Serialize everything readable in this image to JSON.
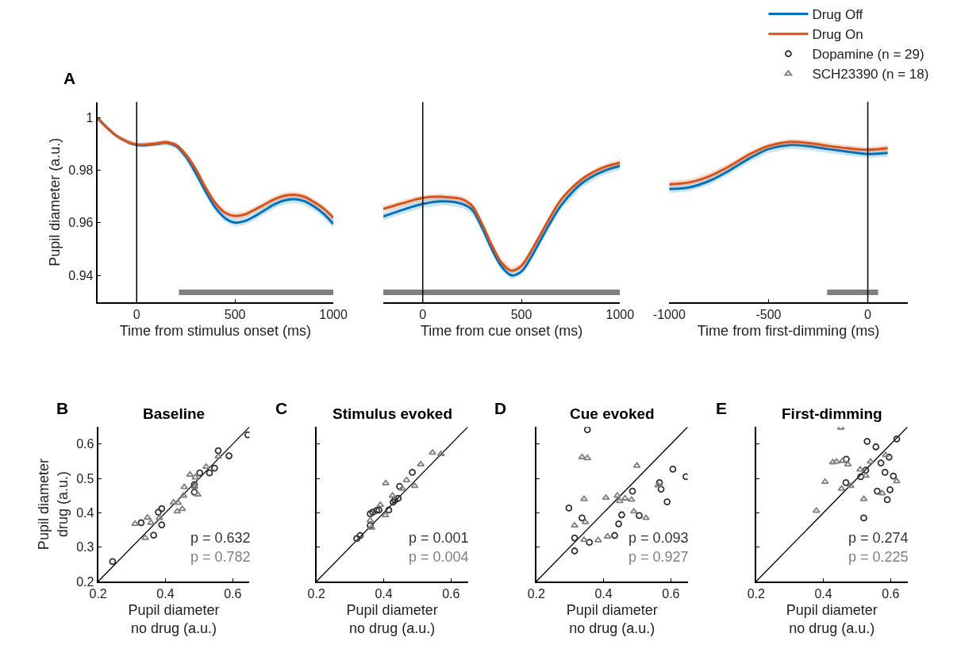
{
  "chart_data": [
    {
      "type": "line",
      "xlabel": "Time from stimulus onset (ms)",
      "ylabel": "Pupil diameter (a.u.)",
      "xlim": [
        -200,
        1000
      ],
      "ylim": [
        0.9298,
        1.006
      ],
      "xticks": [
        0,
        500,
        1000
      ],
      "yticks": [
        0.94,
        0.96,
        0.98,
        1
      ],
      "legend": "top right",
      "annotations": [
        "A"
      ],
      "ref_lines": [
        {
          "axis": "x",
          "value": 0,
          "color": "#000000"
        }
      ],
      "series": [
        {
          "name": "Drug Off",
          "color": "#0072bd",
          "x": [
            -200,
            -100,
            0,
            100,
            150,
            200,
            250,
            300,
            350,
            400,
            450,
            500,
            550,
            600,
            650,
            700,
            750,
            800,
            850,
            900,
            950,
            1000
          ],
          "values": [
            1.0,
            0.993,
            0.9896,
            0.99,
            0.9905,
            0.9893,
            0.9852,
            0.979,
            0.972,
            0.9658,
            0.9618,
            0.9601,
            0.9607,
            0.9625,
            0.9648,
            0.967,
            0.9685,
            0.969,
            0.9683,
            0.9663,
            0.9635,
            0.9596
          ],
          "lower": [
            0.9995,
            0.9924,
            0.9888,
            0.9891,
            0.9895,
            0.9883,
            0.9837,
            0.9775,
            0.9705,
            0.9643,
            0.9603,
            0.9586,
            0.9592,
            0.961,
            0.9633,
            0.9655,
            0.967,
            0.9675,
            0.9668,
            0.9648,
            0.962,
            0.9581
          ],
          "upper": [
            1.0005,
            0.9936,
            0.9904,
            0.9909,
            0.9915,
            0.9903,
            0.9867,
            0.9805,
            0.9735,
            0.9673,
            0.9633,
            0.9616,
            0.9622,
            0.964,
            0.9663,
            0.9685,
            0.97,
            0.9705,
            0.9698,
            0.9678,
            0.965,
            0.9611
          ]
        },
        {
          "name": "Drug On",
          "color": "#d95319",
          "x": [
            -200,
            -100,
            0,
            100,
            150,
            200,
            250,
            300,
            350,
            400,
            450,
            500,
            550,
            600,
            650,
            700,
            750,
            800,
            850,
            900,
            950,
            1000
          ],
          "values": [
            1.0,
            0.993,
            0.9898,
            0.9902,
            0.9907,
            0.9897,
            0.986,
            0.9805,
            0.9735,
            0.9675,
            0.9638,
            0.9626,
            0.9632,
            0.965,
            0.967,
            0.969,
            0.9703,
            0.9707,
            0.97,
            0.968,
            0.9655,
            0.9619
          ],
          "lower": [
            0.9995,
            0.9924,
            0.9892,
            0.9894,
            0.9898,
            0.9887,
            0.9848,
            0.9793,
            0.9723,
            0.9663,
            0.9626,
            0.9614,
            0.962,
            0.9638,
            0.9658,
            0.9678,
            0.9691,
            0.9695,
            0.9688,
            0.9668,
            0.9643,
            0.9607
          ],
          "upper": [
            1.0005,
            0.9936,
            0.9904,
            0.991,
            0.9916,
            0.9907,
            0.9872,
            0.9817,
            0.9747,
            0.9687,
            0.965,
            0.9638,
            0.9644,
            0.9662,
            0.9682,
            0.9702,
            0.9715,
            0.9719,
            0.9712,
            0.9692,
            0.9667,
            0.9631
          ]
        },
        {
          "color": "#808080",
          "x": [
            215,
            1000
          ],
          "values": [
            0.9335,
            0.9335
          ]
        }
      ]
    },
    {
      "type": "line",
      "xlabel": "Time from cue onset (ms)",
      "xlim": [
        -200,
        1000
      ],
      "ylim": [
        0.9298,
        1.006
      ],
      "xticks": [
        0,
        500,
        1000
      ],
      "tick_labels": "x",
      "legend": "top right",
      "ref_lines": [
        {
          "axis": "x",
          "value": 0,
          "color": "#000000"
        }
      ],
      "series": [
        {
          "name": "Drug Off",
          "color": "#0072bd",
          "x": [
            -200,
            -100,
            0,
            100,
            200,
            250,
            300,
            350,
            400,
            450,
            500,
            550,
            600,
            650,
            700,
            800,
            900,
            1000
          ],
          "values": [
            0.9624,
            0.965,
            0.9672,
            0.9682,
            0.9672,
            0.965,
            0.9582,
            0.95,
            0.9433,
            0.94,
            0.9415,
            0.947,
            0.9538,
            0.9605,
            0.9665,
            0.9747,
            0.9792,
            0.9817
          ],
          "lower": [
            0.9609,
            0.9635,
            0.9657,
            0.9667,
            0.9657,
            0.9635,
            0.9567,
            0.9485,
            0.9418,
            0.9385,
            0.94,
            0.9455,
            0.9523,
            0.959,
            0.965,
            0.9732,
            0.9777,
            0.9802
          ],
          "upper": [
            0.9639,
            0.9665,
            0.9687,
            0.9697,
            0.9687,
            0.9665,
            0.9597,
            0.9515,
            0.9448,
            0.9415,
            0.943,
            0.9485,
            0.9553,
            0.962,
            0.968,
            0.9762,
            0.9807,
            0.9832
          ]
        },
        {
          "name": "Drug On",
          "color": "#d95319",
          "x": [
            -200,
            -100,
            0,
            100,
            200,
            250,
            300,
            350,
            400,
            450,
            500,
            550,
            600,
            650,
            700,
            800,
            900,
            1000
          ],
          "values": [
            0.9653,
            0.9675,
            0.9695,
            0.9699,
            0.969,
            0.9665,
            0.9597,
            0.9515,
            0.9448,
            0.9418,
            0.9436,
            0.9493,
            0.956,
            0.9627,
            0.9687,
            0.9762,
            0.9806,
            0.9829
          ],
          "lower": [
            0.9641,
            0.9663,
            0.9683,
            0.9687,
            0.9678,
            0.9653,
            0.9585,
            0.9503,
            0.9436,
            0.9406,
            0.9424,
            0.9481,
            0.9548,
            0.9615,
            0.9675,
            0.975,
            0.9794,
            0.9817
          ],
          "upper": [
            0.9665,
            0.9687,
            0.9707,
            0.9711,
            0.9702,
            0.9677,
            0.9609,
            0.9527,
            0.946,
            0.943,
            0.9448,
            0.9505,
            0.9572,
            0.9639,
            0.9699,
            0.9774,
            0.9818,
            0.9841
          ]
        },
        {
          "color": "#808080",
          "x": [
            -200,
            1000
          ],
          "values": [
            0.9335,
            0.9335
          ]
        }
      ]
    },
    {
      "type": "line",
      "xlabel": "Time from first-dimming (ms)",
      "xlim": [
        -1000,
        200
      ],
      "ylim": [
        0.9298,
        1.006
      ],
      "xticks": [
        -1000,
        -500,
        0
      ],
      "tick_labels": "x",
      "legend": "top right",
      "ref_lines": [
        {
          "axis": "x",
          "value": 0,
          "color": "#000000"
        }
      ],
      "series": [
        {
          "name": "Drug Off",
          "color": "#0072bd",
          "x": [
            -1000,
            -900,
            -800,
            -700,
            -600,
            -500,
            -400,
            -300,
            -200,
            -100,
            0,
            100
          ],
          "values": [
            0.9729,
            0.9735,
            0.9759,
            0.9798,
            0.9844,
            0.9881,
            0.9896,
            0.9892,
            0.9881,
            0.9871,
            0.9862,
            0.9866
          ],
          "lower": [
            0.9714,
            0.972,
            0.9744,
            0.9783,
            0.9829,
            0.9866,
            0.9881,
            0.9877,
            0.9866,
            0.9856,
            0.9847,
            0.9851
          ],
          "upper": [
            0.9744,
            0.975,
            0.9774,
            0.9813,
            0.9859,
            0.9896,
            0.9911,
            0.9907,
            0.9896,
            0.9886,
            0.9877,
            0.9881
          ]
        },
        {
          "name": "Drug On",
          "color": "#d95319",
          "x": [
            -1000,
            -900,
            -800,
            -700,
            -600,
            -500,
            -400,
            -300,
            -200,
            -100,
            0,
            100
          ],
          "values": [
            0.9747,
            0.9754,
            0.9777,
            0.9814,
            0.9859,
            0.9893,
            0.9908,
            0.9904,
            0.9893,
            0.9884,
            0.9878,
            0.9884
          ],
          "lower": [
            0.9735,
            0.9742,
            0.9765,
            0.9802,
            0.9847,
            0.9881,
            0.9896,
            0.9892,
            0.9881,
            0.9872,
            0.9866,
            0.9872
          ],
          "upper": [
            0.9759,
            0.9766,
            0.9789,
            0.9826,
            0.9871,
            0.9905,
            0.992,
            0.9916,
            0.9905,
            0.9896,
            0.989,
            0.9896
          ]
        },
        {
          "color": "#808080",
          "x": [
            -205,
            52
          ],
          "values": [
            0.9335,
            0.9335
          ]
        }
      ]
    },
    {
      "type": "scatter",
      "title": "Baseline",
      "xlabel": "Pupil diameter\nno drug (a.u.)",
      "ylabel": "Pupil diameter\ndrug (a.u.)",
      "xlim": [
        0.2,
        0.65
      ],
      "ylim": [
        0.2,
        0.65
      ],
      "xticks": [
        0.2,
        0.4,
        0.6
      ],
      "yticks": [
        0.2,
        0.3,
        0.4,
        0.5,
        0.6
      ],
      "legend": "top right",
      "annotations": [
        "B",
        "p = 0.632",
        "p = 0.782"
      ],
      "series": [
        {
          "type": "line",
          "color": "#000000",
          "marker": "none",
          "x": [
            0.2,
            0.65
          ],
          "values": [
            0.2,
            0.65
          ]
        },
        {
          "name": "Dopamine (n = 29)",
          "color": "#333333",
          "marker": "circle",
          "x": [
            0.243,
            0.328,
            0.365,
            0.379,
            0.389,
            0.389,
            0.486,
            0.486,
            0.502,
            0.531,
            0.546,
            0.557,
            0.589,
            0.645
          ],
          "values": [
            0.258,
            0.371,
            0.335,
            0.402,
            0.412,
            0.365,
            0.482,
            0.46,
            0.516,
            0.516,
            0.53,
            0.581,
            0.566,
            0.627
          ]
        },
        {
          "name": "SCH23390 (n = 18)",
          "color": "#808080",
          "marker": "triangle",
          "x": [
            0.31,
            0.347,
            0.357,
            0.34,
            0.382,
            0.424,
            0.438,
            0.45,
            0.435,
            0.454,
            0.456,
            0.473,
            0.489,
            0.487,
            0.496,
            0.521,
            0.557
          ],
          "values": [
            0.368,
            0.386,
            0.371,
            0.327,
            0.385,
            0.43,
            0.429,
            0.411,
            0.404,
            0.45,
            0.475,
            0.511,
            0.503,
            0.476,
            0.453,
            0.534,
            0.564
          ]
        }
      ]
    },
    {
      "type": "scatter",
      "title": "Stimulus evoked",
      "xlabel": "Pupil diameter\nno drug (a.u.)",
      "xlim": [
        0.2,
        0.65
      ],
      "ylim": [
        0.2,
        0.65
      ],
      "xticks": [
        0.2,
        0.4,
        0.6
      ],
      "yticks": [
        {
          "value": 0.2,
          "label": null
        },
        {
          "value": 0.3,
          "label": null
        },
        {
          "value": 0.4,
          "label": null
        },
        {
          "value": 0.5,
          "label": null
        },
        {
          "value": 0.6,
          "label": null
        }
      ],
      "tick_labels": "x",
      "legend": "top right",
      "annotations": [
        "C",
        "p = 0.001",
        "p = 0.004"
      ],
      "series": [
        {
          "type": "line",
          "color": "#000000",
          "marker": "none",
          "x": [
            0.2,
            0.65
          ],
          "values": [
            0.2,
            0.65
          ]
        },
        {
          "name": "Dopamine (n = 29)",
          "color": "#333333",
          "marker": "circle",
          "x": [
            0.32,
            0.33,
            0.36,
            0.367,
            0.379,
            0.386,
            0.415,
            0.428,
            0.433,
            0.443,
            0.447,
            0.485,
            0.36
          ],
          "values": [
            0.325,
            0.334,
            0.397,
            0.402,
            0.407,
            0.408,
            0.408,
            0.431,
            0.437,
            0.442,
            0.477,
            0.518,
            0.363
          ]
        },
        {
          "name": "SCH23390 (n = 18)",
          "color": "#808080",
          "marker": "triangle",
          "x": [
            0.36,
            0.364,
            0.39,
            0.405,
            0.406,
            0.426,
            0.455,
            0.468,
            0.492,
            0.51,
            0.545,
            0.57
          ],
          "values": [
            0.378,
            0.357,
            0.423,
            0.393,
            0.486,
            0.45,
            0.47,
            0.495,
            0.478,
            0.541,
            0.575,
            0.571
          ]
        }
      ]
    },
    {
      "type": "scatter",
      "title": "Cue evoked",
      "xlabel": "Pupil diameter\nno drug (a.u.)",
      "xlim": [
        0.2,
        0.65
      ],
      "ylim": [
        0.2,
        0.65
      ],
      "xticks": [
        0.2,
        0.4,
        0.6
      ],
      "yticks": [
        {
          "value": 0.2,
          "label": null
        },
        {
          "value": 0.3,
          "label": null
        },
        {
          "value": 0.4,
          "label": null
        },
        {
          "value": 0.5,
          "label": null
        },
        {
          "value": 0.6,
          "label": null
        }
      ],
      "tick_labels": "x",
      "legend": "top right",
      "annotations": [
        "D",
        "p = 0.093",
        "p = 0.927"
      ],
      "series": [
        {
          "type": "line",
          "color": "#000000",
          "marker": "none",
          "x": [
            0.2,
            0.65
          ],
          "values": [
            0.2,
            0.65
          ]
        },
        {
          "name": "Dopamine (n = 29)",
          "color": "#333333",
          "marker": "circle",
          "x": [
            0.352,
            0.297,
            0.336,
            0.314,
            0.314,
            0.358,
            0.433,
            0.445,
            0.454,
            0.486,
            0.506,
            0.566,
            0.571,
            0.589,
            0.606,
            0.645
          ],
          "values": [
            0.642,
            0.414,
            0.385,
            0.327,
            0.289,
            0.314,
            0.334,
            0.368,
            0.394,
            0.463,
            0.392,
            0.488,
            0.469,
            0.432,
            0.527,
            0.505
          ]
        },
        {
          "name": "SCH23390 (n = 18)",
          "color": "#808080",
          "marker": "triangle",
          "x": [
            0.336,
            0.352,
            0.342,
            0.314,
            0.346,
            0.342,
            0.384,
            0.412,
            0.407,
            0.441,
            0.448,
            0.464,
            0.483,
            0.499,
            0.49,
            0.526,
            0.562
          ],
          "values": [
            0.562,
            0.559,
            0.44,
            0.363,
            0.373,
            0.321,
            0.32,
            0.331,
            0.444,
            0.45,
            0.434,
            0.442,
            0.438,
            0.537,
            0.404,
            0.385,
            0.48
          ]
        }
      ]
    },
    {
      "type": "scatter",
      "title": "First-dimming",
      "xlabel": "Pupil diameter\nno drug (a.u.)",
      "xlim": [
        0.2,
        0.65
      ],
      "ylim": [
        0.2,
        0.65
      ],
      "xticks": [
        0.2,
        0.4,
        0.6
      ],
      "yticks": [
        {
          "value": 0.2,
          "label": null
        },
        {
          "value": 0.3,
          "label": null
        },
        {
          "value": 0.4,
          "label": null
        },
        {
          "value": 0.5,
          "label": null
        },
        {
          "value": 0.6,
          "label": null
        }
      ],
      "tick_labels": "x",
      "legend": "top right",
      "annotations": [
        "E",
        "p = 0.274",
        "p = 0.225"
      ],
      "series": [
        {
          "type": "line",
          "color": "#000000",
          "marker": "none",
          "x": [
            0.2,
            0.65
          ],
          "values": [
            0.2,
            0.65
          ]
        },
        {
          "name": "Dopamine (n = 29)",
          "color": "#333333",
          "marker": "circle",
          "x": [
            0.53,
            0.556,
            0.618,
            0.595,
            0.571,
            0.583,
            0.608,
            0.526,
            0.511,
            0.468,
            0.467,
            0.56,
            0.598,
            0.59,
            0.52
          ],
          "values": [
            0.608,
            0.592,
            0.615,
            0.562,
            0.545,
            0.518,
            0.507,
            0.524,
            0.505,
            0.556,
            0.488,
            0.463,
            0.467,
            0.438,
            0.385
          ]
        },
        {
          "name": "SCH23390 (n = 18)",
          "color": "#808080",
          "marker": "triangle",
          "x": [
            0.452,
            0.428,
            0.439,
            0.457,
            0.473,
            0.405,
            0.454,
            0.481,
            0.379,
            0.509,
            0.526,
            0.54,
            0.585,
            0.618,
            0.575,
            0.52
          ],
          "values": [
            0.648,
            0.547,
            0.549,
            0.551,
            0.541,
            0.49,
            0.47,
            0.478,
            0.406,
            0.526,
            0.508,
            0.549,
            0.568,
            0.492,
            0.457,
            0.44
          ]
        }
      ]
    }
  ]
}
